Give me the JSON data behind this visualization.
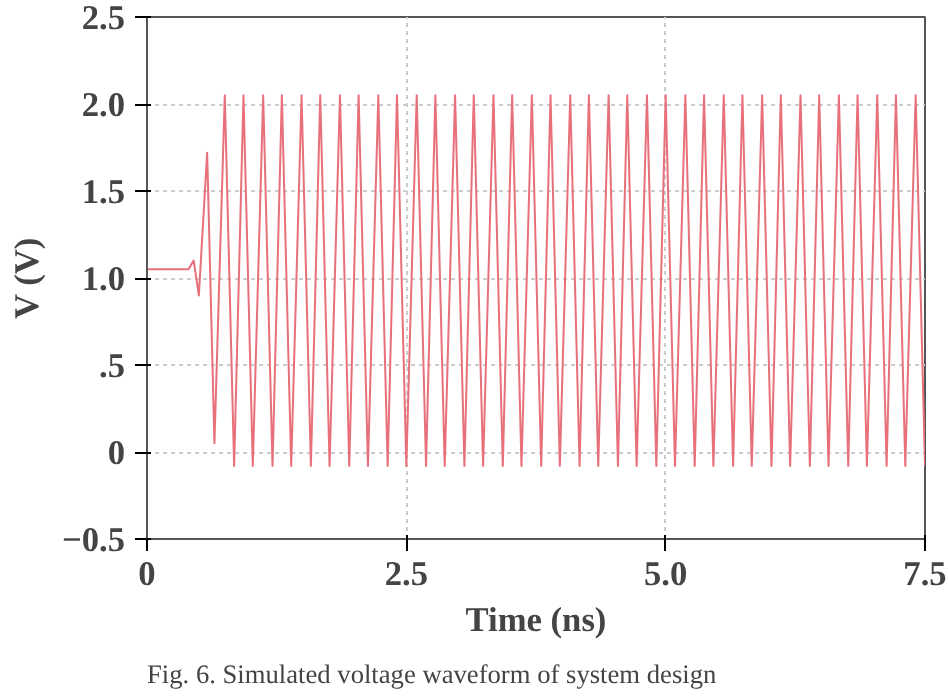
{
  "chart_data": {
    "type": "line",
    "xlabel": "Time (ns)",
    "ylabel": "V (V)",
    "annotations": [
      "Fig. 6. Simulated voltage waveform of system design"
    ],
    "xlim": [
      0,
      7.5
    ],
    "ylim": [
      -0.5,
      2.5
    ],
    "xticks": [
      0,
      2.5,
      {
        "value": 5,
        "label": "5.0"
      },
      7.5
    ],
    "yticks": [
      -0.5,
      0,
      {
        "value": 0.5,
        "label": ".5"
      },
      {
        "value": 1,
        "label": "1.0"
      },
      1.5,
      {
        "value": 2,
        "label": "2.0"
      },
      2.5
    ],
    "grid": true,
    "line_style": "solid",
    "series": [
      {
        "color": "#e8707a",
        "x": [
          0,
          0.4,
          0.45,
          0.5,
          0.58,
          0.65,
          0.75,
          0.84,
          0.93,
          1.02,
          1.12,
          1.21,
          1.3,
          1.39,
          1.49,
          1.58,
          1.67,
          1.76,
          1.86,
          1.95,
          2.04,
          2.13,
          2.23,
          2.32,
          2.41,
          2.5,
          2.6,
          2.69,
          2.78,
          2.87,
          2.97,
          3.06,
          3.15,
          3.24,
          3.34,
          3.43,
          3.52,
          3.61,
          3.71,
          3.8,
          3.89,
          3.98,
          4.08,
          4.17,
          4.26,
          4.35,
          4.45,
          4.54,
          4.63,
          4.72,
          4.82,
          4.91,
          5.0,
          5.09,
          5.19,
          5.28,
          5.37,
          5.46,
          5.56,
          5.65,
          5.74,
          5.83,
          5.93,
          6.02,
          6.11,
          6.2,
          6.3,
          6.39,
          6.48,
          6.57,
          6.67,
          6.76,
          6.85,
          6.94,
          7.04,
          7.13,
          7.22,
          7.31,
          7.41,
          7.5
        ],
        "values": [
          1.05,
          1.05,
          1.1,
          0.9,
          1.72,
          0.05,
          2.05,
          -0.08,
          2.05,
          -0.08,
          2.05,
          -0.08,
          2.05,
          -0.08,
          2.05,
          -0.08,
          2.05,
          -0.08,
          2.05,
          -0.08,
          2.05,
          -0.08,
          2.05,
          -0.08,
          2.05,
          -0.08,
          2.05,
          -0.08,
          2.05,
          -0.08,
          2.05,
          -0.08,
          2.05,
          -0.08,
          2.05,
          -0.08,
          2.05,
          -0.08,
          2.05,
          -0.08,
          2.05,
          -0.08,
          2.05,
          -0.08,
          2.05,
          -0.08,
          2.05,
          -0.08,
          2.05,
          -0.08,
          2.05,
          -0.08,
          2.05,
          -0.08,
          2.05,
          -0.08,
          2.05,
          -0.08,
          2.05,
          -0.08,
          2.05,
          -0.08,
          2.05,
          -0.08,
          2.05,
          -0.08,
          2.05,
          -0.08,
          2.05,
          -0.08,
          2.05,
          -0.08,
          2.05,
          -0.08,
          2.05,
          -0.08,
          2.05,
          -0.08,
          2.05,
          -0.08
        ]
      }
    ]
  }
}
